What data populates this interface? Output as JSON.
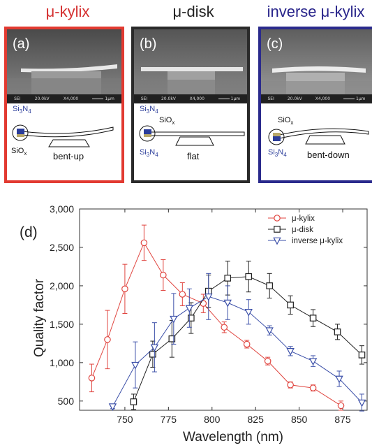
{
  "panels": [
    {
      "title": "μ-kylix",
      "letter": "(a)",
      "state": "bent-up",
      "color": "#e23a31"
    },
    {
      "title": "μ-disk",
      "letter": "(b)",
      "state": "flat",
      "color": "#2a2a2a"
    },
    {
      "title": "inverse μ-kylix",
      "letter": "(c)",
      "state": "bent-down",
      "color": "#2a2a8c"
    }
  ],
  "sem_caption": {
    "detector": "SEI",
    "voltage": "20.0kV",
    "magnification": "X4,000",
    "scale": "1μm"
  },
  "materials": {
    "si3n4_base": "Si",
    "si3n4_sub1": "3",
    "si3n4_mid": "N",
    "si3n4_sub2": "4",
    "siox_base": "SiO",
    "siox_sub": "x"
  },
  "chart_data": {
    "type": "scatter",
    "panel_label": "(d)",
    "xlabel": "Wavelength (nm)",
    "ylabel": "Quality factor",
    "xlim": [
      724,
      889
    ],
    "ylim": [
      380,
      3000
    ],
    "xticks": [
      750,
      775,
      800,
      825,
      850,
      875
    ],
    "yticks": [
      500,
      1000,
      1500,
      2000,
      2500,
      3000
    ],
    "ytick_labels": [
      "500",
      "1,000",
      "1,500",
      "2,000",
      "2,500",
      "3,000"
    ],
    "legend_position": "top-right",
    "series": [
      {
        "name": "μ-kylix",
        "color": "#e0453f",
        "marker": "circle",
        "x": [
          731,
          740,
          750,
          761,
          772,
          783,
          795,
          807,
          820,
          832,
          845,
          858,
          874
        ],
        "y": [
          800,
          1300,
          1960,
          2560,
          2140,
          1890,
          1770,
          1460,
          1240,
          1020,
          710,
          670,
          440
        ],
        "err": [
          180,
          380,
          320,
          230,
          200,
          150,
          120,
          70,
          50,
          50,
          40,
          40,
          60
        ]
      },
      {
        "name": "μ-disk",
        "color": "#1f1f1f",
        "marker": "square",
        "x": [
          755,
          766,
          777,
          788,
          798,
          809,
          821,
          833,
          845,
          858,
          872,
          886
        ],
        "y": [
          490,
          1110,
          1310,
          1580,
          1930,
          2100,
          2120,
          2000,
          1750,
          1580,
          1400,
          1100
        ],
        "err": [
          100,
          170,
          240,
          200,
          210,
          220,
          200,
          160,
          120,
          110,
          100,
          120
        ]
      },
      {
        "name": "inverse μ-kylix",
        "color": "#3b4fa8",
        "marker": "triangle-down",
        "x": [
          743,
          756,
          767,
          778,
          787,
          798,
          809,
          821,
          833,
          845,
          858,
          873,
          886
        ],
        "y": [
          430,
          970,
          1200,
          1570,
          1710,
          1860,
          1780,
          1660,
          1420,
          1150,
          1020,
          790,
          480
        ],
        "err": [
          30,
          300,
          320,
          330,
          250,
          300,
          220,
          160,
          60,
          60,
          70,
          100,
          110
        ]
      }
    ]
  }
}
